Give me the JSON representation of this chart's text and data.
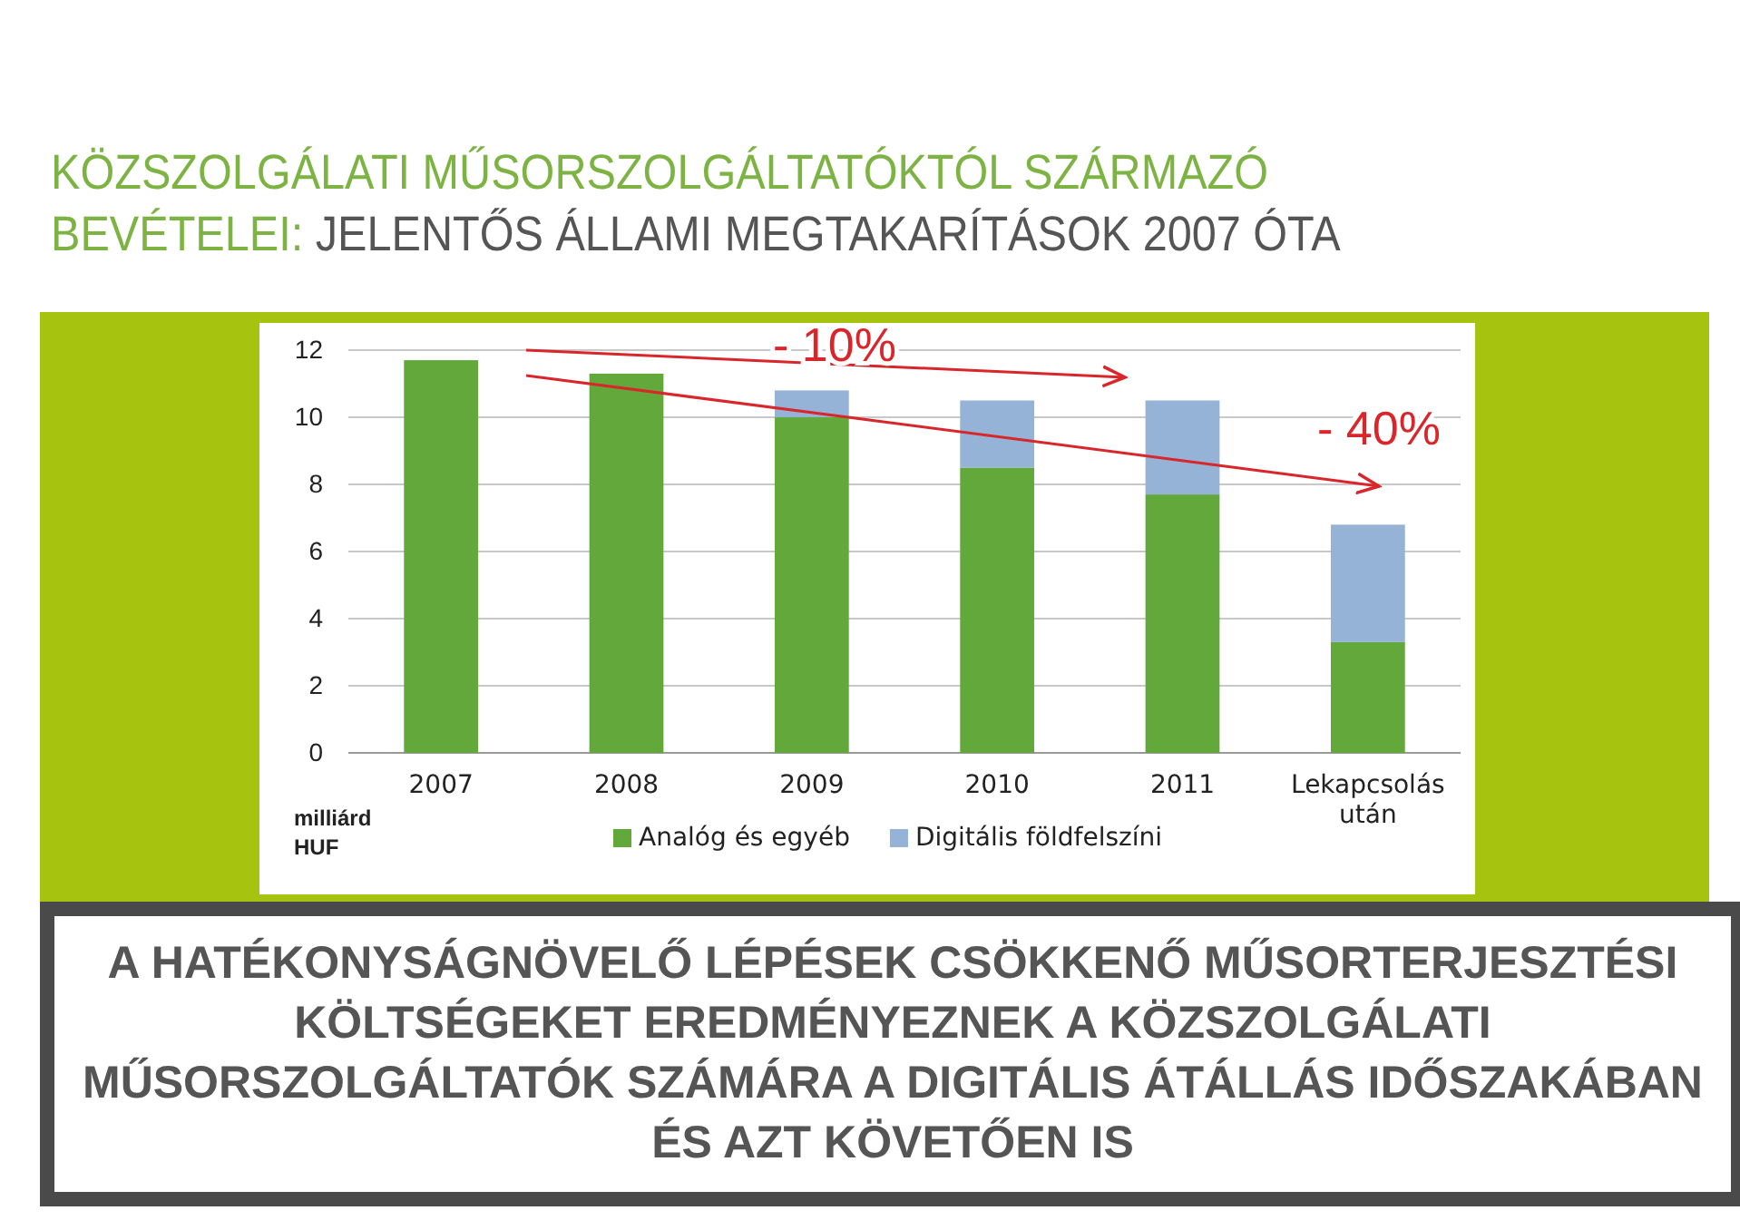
{
  "chart_data": {
    "type": "bar",
    "title": "KÖZSZOLGÁLATI MŰSORSZOLGÁLTATÓKTÓL SZÁRMAZÓ BEVÉTELEI:",
    "subtitle": "JELENTŐS ÁLLAMI MEGTAKARÍTÁSOK 2007 ÓTA",
    "ylabel": "milliárd HUF",
    "categories": [
      "2007",
      "2008",
      "2009",
      "2010",
      "2011",
      "Lekapcsolás után"
    ],
    "stacked": true,
    "series": [
      {
        "name": "Analóg és egyéb",
        "color": "#63a83a",
        "values": [
          11.7,
          11.3,
          10.0,
          8.5,
          7.7,
          3.3
        ]
      },
      {
        "name": "Digitális földfelszíni",
        "color": "#95b3d7",
        "values": [
          0,
          0,
          0.8,
          2.0,
          2.8,
          3.5
        ]
      }
    ],
    "ylim": [
      0,
      12
    ],
    "yticks": [
      0,
      2,
      4,
      6,
      8,
      10,
      12
    ],
    "grid": "y",
    "legend": "bottom",
    "annotations": [
      "- 10%",
      "- 40%",
      "A HATÉKONYSÁGNÖVELŐ LÉPÉSEK CSÖKKENŐ MŰSORTERJESZTÉSI KÖLTSÉGEKET EREDMÉNYEZNEK A KÖZSZOLGÁLATI MŰSORSZOLGÁLTATÓK SZÁMÁRA A DIGITÁLIS ÁTÁLLÁS IDŐSZAKÁBAN ÉS AZT KÖVETŐEN IS"
    ]
  }
}
